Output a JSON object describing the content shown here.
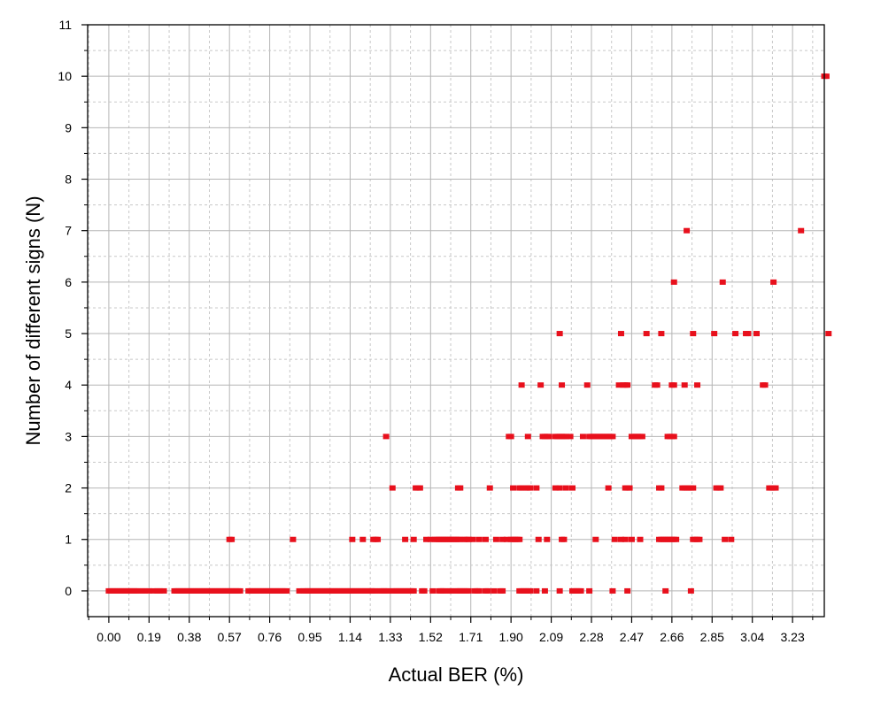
{
  "chart_data": {
    "type": "scatter",
    "title": "",
    "xlabel": "Actual BER (%)",
    "ylabel": "Number of different signs (N)",
    "xlim": [
      -0.1,
      3.38
    ],
    "ylim": [
      -0.5,
      11
    ],
    "x_ticks": [
      "0.00",
      "0.19",
      "0.38",
      "0.57",
      "0.76",
      "0.95",
      "1.14",
      "1.33",
      "1.52",
      "1.71",
      "1.90",
      "2.09",
      "2.28",
      "2.47",
      "2.66",
      "2.85",
      "3.04",
      "3.23"
    ],
    "y_ticks": [
      "0",
      "1",
      "2",
      "3",
      "4",
      "5",
      "6",
      "7",
      "8",
      "9",
      "10",
      "11"
    ],
    "grid": true,
    "marker_color": "#e8101c",
    "groups": [
      {
        "y": 0,
        "x": [
          0.0,
          0.01,
          0.02,
          0.03,
          0.04,
          0.05,
          0.06,
          0.07,
          0.08,
          0.09,
          0.1,
          0.11,
          0.12,
          0.13,
          0.14,
          0.16,
          0.17,
          0.19,
          0.21,
          0.23,
          0.24,
          0.26,
          0.31,
          0.32,
          0.33,
          0.34,
          0.35,
          0.36,
          0.37,
          0.38,
          0.39,
          0.4,
          0.41,
          0.42,
          0.43,
          0.44,
          0.45,
          0.46,
          0.47,
          0.48,
          0.49,
          0.5,
          0.51,
          0.52,
          0.53,
          0.54,
          0.55,
          0.56,
          0.57,
          0.58,
          0.59,
          0.6,
          0.61,
          0.62,
          0.66,
          0.67,
          0.68,
          0.69,
          0.7,
          0.71,
          0.72,
          0.73,
          0.74,
          0.75,
          0.76,
          0.77,
          0.78,
          0.79,
          0.8,
          0.81,
          0.82,
          0.83,
          0.84,
          0.9,
          0.92,
          0.93,
          0.94,
          0.95,
          0.96,
          0.97,
          0.98,
          0.99,
          1.0,
          1.01,
          1.02,
          1.03,
          1.04,
          1.05,
          1.06,
          1.07,
          1.08,
          1.09,
          1.1,
          1.11,
          1.12,
          1.13,
          1.14,
          1.15,
          1.16,
          1.17,
          1.18,
          1.19,
          1.2,
          1.21,
          1.22,
          1.23,
          1.24,
          1.25,
          1.26,
          1.28,
          1.29,
          1.3,
          1.31,
          1.32,
          1.34,
          1.35,
          1.36,
          1.37,
          1.38,
          1.39,
          1.4,
          1.41,
          1.42,
          1.43,
          1.44,
          1.48,
          1.49,
          1.53,
          1.56,
          1.57,
          1.58,
          1.59,
          1.61,
          1.62,
          1.64,
          1.65,
          1.66,
          1.67,
          1.68,
          1.69,
          1.7,
          1.73,
          1.74,
          1.75,
          1.78,
          1.79,
          1.82,
          1.85,
          1.86,
          1.94,
          1.95,
          1.96,
          1.97,
          1.98,
          1.99,
          2.02,
          2.06,
          2.13,
          2.19,
          2.2,
          2.21,
          2.22,
          2.23,
          2.27,
          2.38,
          2.45,
          2.63,
          2.75
        ]
      },
      {
        "y": 1,
        "x": [
          0.57,
          0.58,
          0.87,
          1.15,
          1.2,
          1.25,
          1.26,
          1.27,
          1.4,
          1.44,
          1.5,
          1.52,
          1.54,
          1.55,
          1.56,
          1.57,
          1.58,
          1.59,
          1.6,
          1.61,
          1.62,
          1.63,
          1.64,
          1.65,
          1.66,
          1.68,
          1.69,
          1.7,
          1.72,
          1.75,
          1.78,
          1.83,
          1.86,
          1.88,
          1.9,
          1.91,
          1.92,
          1.93,
          1.94,
          2.03,
          2.07,
          2.14,
          2.15,
          2.3,
          2.39,
          2.42,
          2.44,
          2.47,
          2.51,
          2.6,
          2.61,
          2.62,
          2.63,
          2.64,
          2.65,
          2.66,
          2.67,
          2.68,
          2.76,
          2.77,
          2.78,
          2.79,
          2.91,
          2.94
        ]
      },
      {
        "y": 2,
        "x": [
          1.34,
          1.45,
          1.46,
          1.47,
          1.65,
          1.66,
          1.8,
          1.91,
          1.94,
          1.95,
          1.97,
          1.98,
          1.99,
          2.02,
          2.11,
          2.13,
          2.16,
          2.19,
          2.36,
          2.44,
          2.45,
          2.46,
          2.6,
          2.61,
          2.71,
          2.72,
          2.73,
          2.74,
          2.75,
          2.76,
          2.87,
          2.88,
          2.89,
          3.12,
          3.13,
          3.14,
          3.15
        ]
      },
      {
        "y": 3,
        "x": [
          1.31,
          1.89,
          1.9,
          1.98,
          2.05,
          2.06,
          2.07,
          2.08,
          2.11,
          2.12,
          2.13,
          2.14,
          2.15,
          2.16,
          2.18,
          2.24,
          2.27,
          2.28,
          2.29,
          2.3,
          2.31,
          2.32,
          2.33,
          2.34,
          2.35,
          2.36,
          2.37,
          2.38,
          2.47,
          2.48,
          2.49,
          2.5,
          2.51,
          2.52,
          2.64,
          2.65,
          2.66,
          2.67
        ]
      },
      {
        "y": 4,
        "x": [
          1.95,
          2.04,
          2.14,
          2.26,
          2.41,
          2.43,
          2.44,
          2.45,
          2.58,
          2.59,
          2.66,
          2.67,
          2.72,
          2.78,
          3.09,
          3.1
        ]
      },
      {
        "y": 5,
        "x": [
          2.13,
          2.42,
          2.54,
          2.61,
          2.76,
          2.86,
          2.96,
          3.01,
          3.02,
          3.06,
          3.4
        ]
      },
      {
        "y": 6,
        "x": [
          2.67,
          2.9,
          3.14
        ]
      },
      {
        "y": 7,
        "x": [
          2.73,
          3.27
        ]
      },
      {
        "y": 10,
        "x": [
          3.38,
          3.39
        ]
      }
    ]
  }
}
